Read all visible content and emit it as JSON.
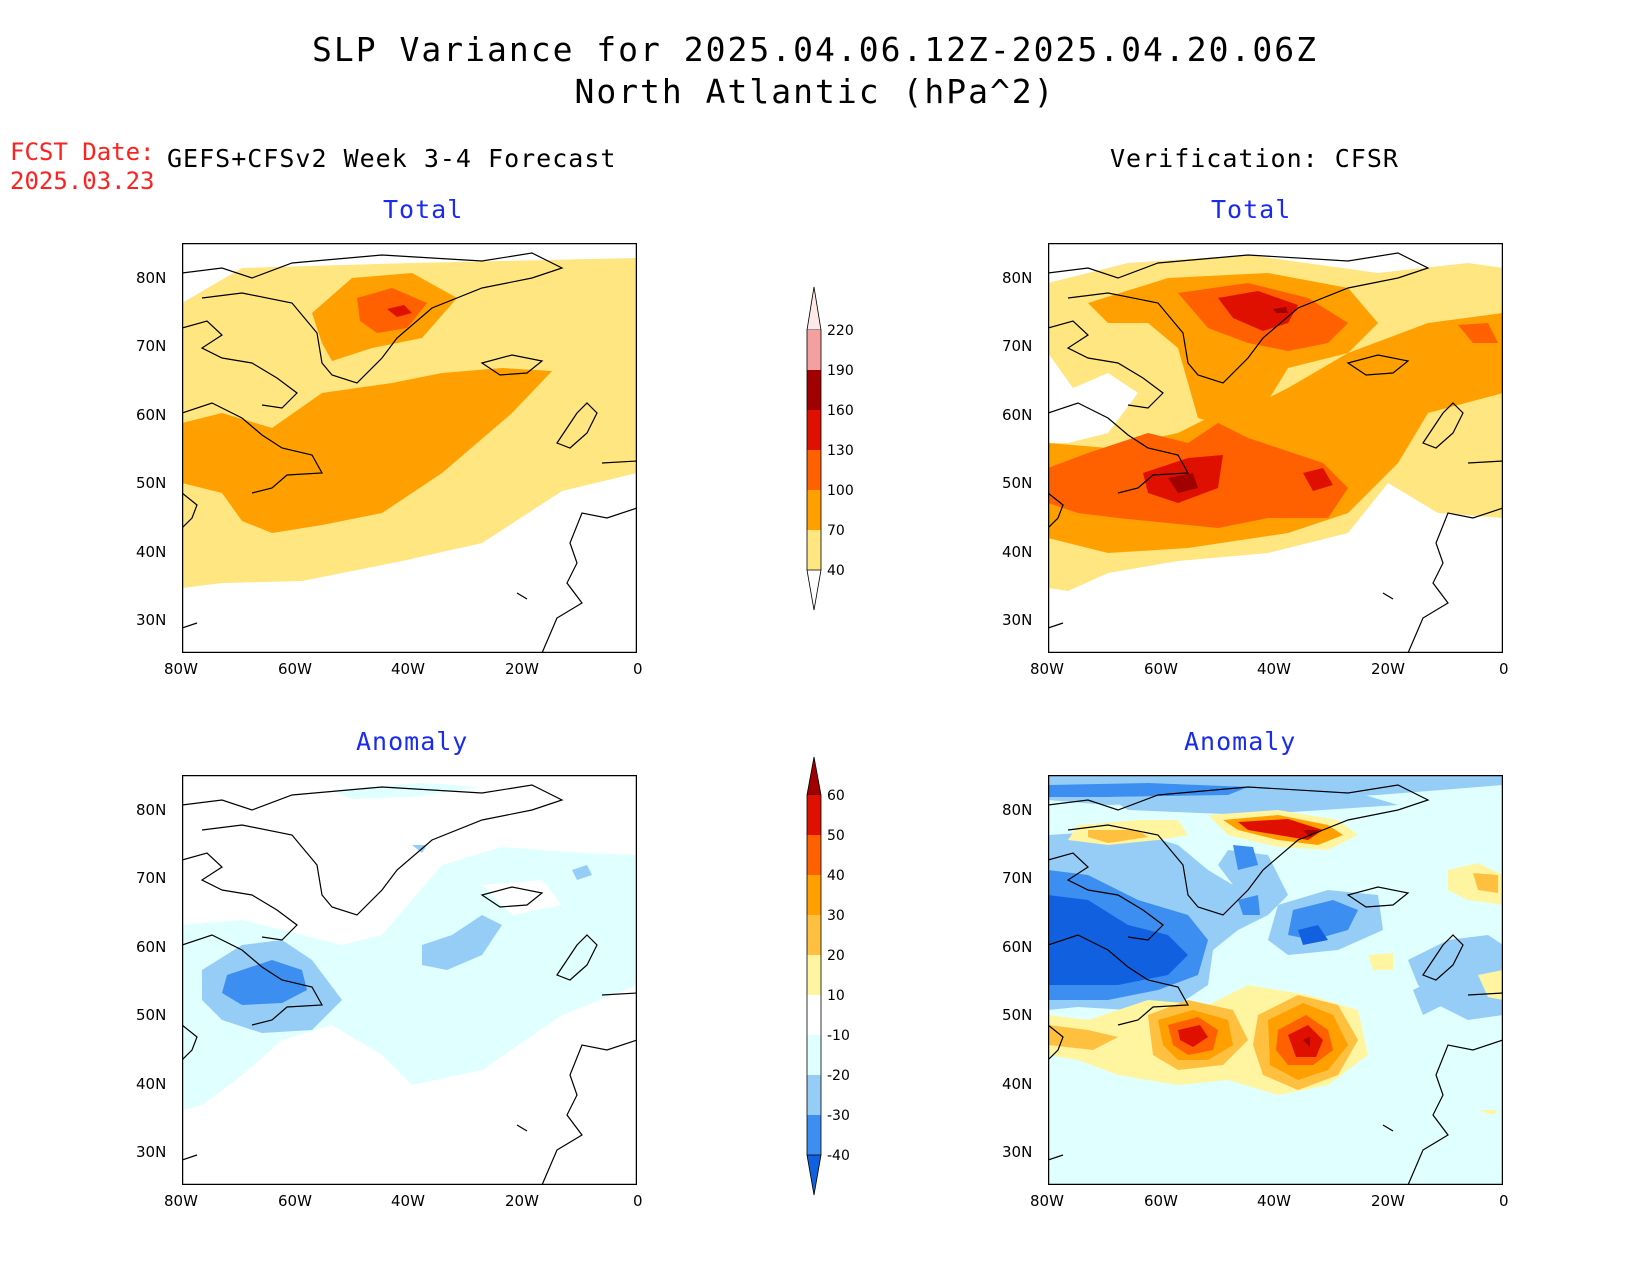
{
  "title_line1": "SLP Variance for 2025.04.06.12Z-2025.04.20.06Z",
  "title_line2": "North Atlantic (hPa^2)",
  "fcst_label": "FCST Date:",
  "fcst_date": "2025.03.23",
  "left_heading": "GEFS+CFSv2 Week 3-4 Forecast",
  "right_heading": "Verification: CFSR",
  "panel_titles": {
    "top_left": "Total",
    "top_right": "Total",
    "bottom_left": "Anomaly",
    "bottom_right": "Anomaly"
  },
  "axes": {
    "lat_labels": [
      "80N",
      "70N",
      "60N",
      "50N",
      "40N",
      "30N"
    ],
    "lon_labels": [
      "80W",
      "60W",
      "40W",
      "20W",
      "0"
    ]
  },
  "total_colorbar": {
    "levels": [
      "40",
      "70",
      "100",
      "130",
      "160",
      "190",
      "220"
    ],
    "colors": [
      "#ffe680",
      "#ffa000",
      "#ff6000",
      "#e01000",
      "#a00000",
      "#f4a0a0",
      "#ffe8e8"
    ]
  },
  "anomaly_colorbar": {
    "levels": [
      "-40",
      "-30",
      "-20",
      "-10",
      "10",
      "20",
      "30",
      "40",
      "50",
      "60"
    ],
    "colors": [
      "#1060e0",
      "#3c8ef0",
      "#96cdf6",
      "#e0ffff",
      "#ffffff",
      "#fff5a0",
      "#ffc040",
      "#ffa000",
      "#ff6000",
      "#e01000",
      "#a00000"
    ]
  },
  "colors": {
    "title": "#000000",
    "fcst": "#ff2020",
    "subtitle": "#1a2bf0"
  }
}
